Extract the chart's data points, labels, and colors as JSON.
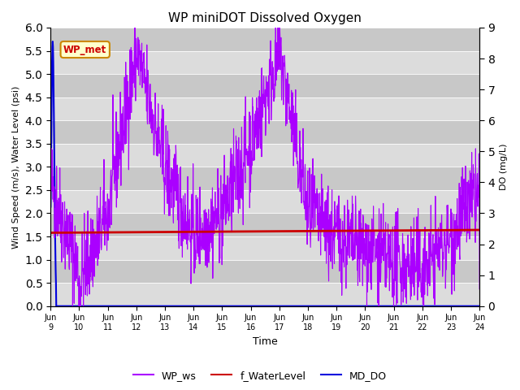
{
  "title": "WP miniDOT Dissolved Oxygen",
  "xlabel": "Time",
  "ylabel_left": "Wind Speed (m/s), Water Level (psi)",
  "ylabel_right": "DO (mg/L)",
  "ylim_left": [
    0.0,
    6.0
  ],
  "ylim_right": [
    0.0,
    9.0
  ],
  "yticks_left": [
    0.0,
    0.5,
    1.0,
    1.5,
    2.0,
    2.5,
    3.0,
    3.5,
    4.0,
    4.5,
    5.0,
    5.5,
    6.0
  ],
  "yticks_right": [
    0.0,
    1.0,
    2.0,
    3.0,
    4.0,
    5.0,
    6.0,
    7.0,
    8.0,
    9.0
  ],
  "xtick_labels": [
    "Jun 9",
    "Jun\n10",
    "Jun\n11",
    "Jun\n12",
    "Jun\n13",
    "Jun\n14",
    "Jun\n15",
    "Jun\n16",
    "Jun\n17",
    "Jun\n18",
    "Jun\n19",
    "Jun\n20",
    "Jun\n21",
    "Jun\n22",
    "Jun\n23",
    "Jun\n24"
  ],
  "wp_ws_color": "#AA00FF",
  "f_water_color": "#CC0000",
  "md_do_color": "#0000DD",
  "legend_label_ws": "WP_ws",
  "legend_label_wl": "f_WaterLevel",
  "legend_label_do": "MD_DO",
  "annotation_text": "WP_met",
  "annotation_color": "#CC0000",
  "annotation_bg": "#FFFFCC",
  "annotation_border": "#CC8800",
  "bg_light": "#DCDCDC",
  "bg_dark": "#C8C8C8",
  "seed": 42
}
